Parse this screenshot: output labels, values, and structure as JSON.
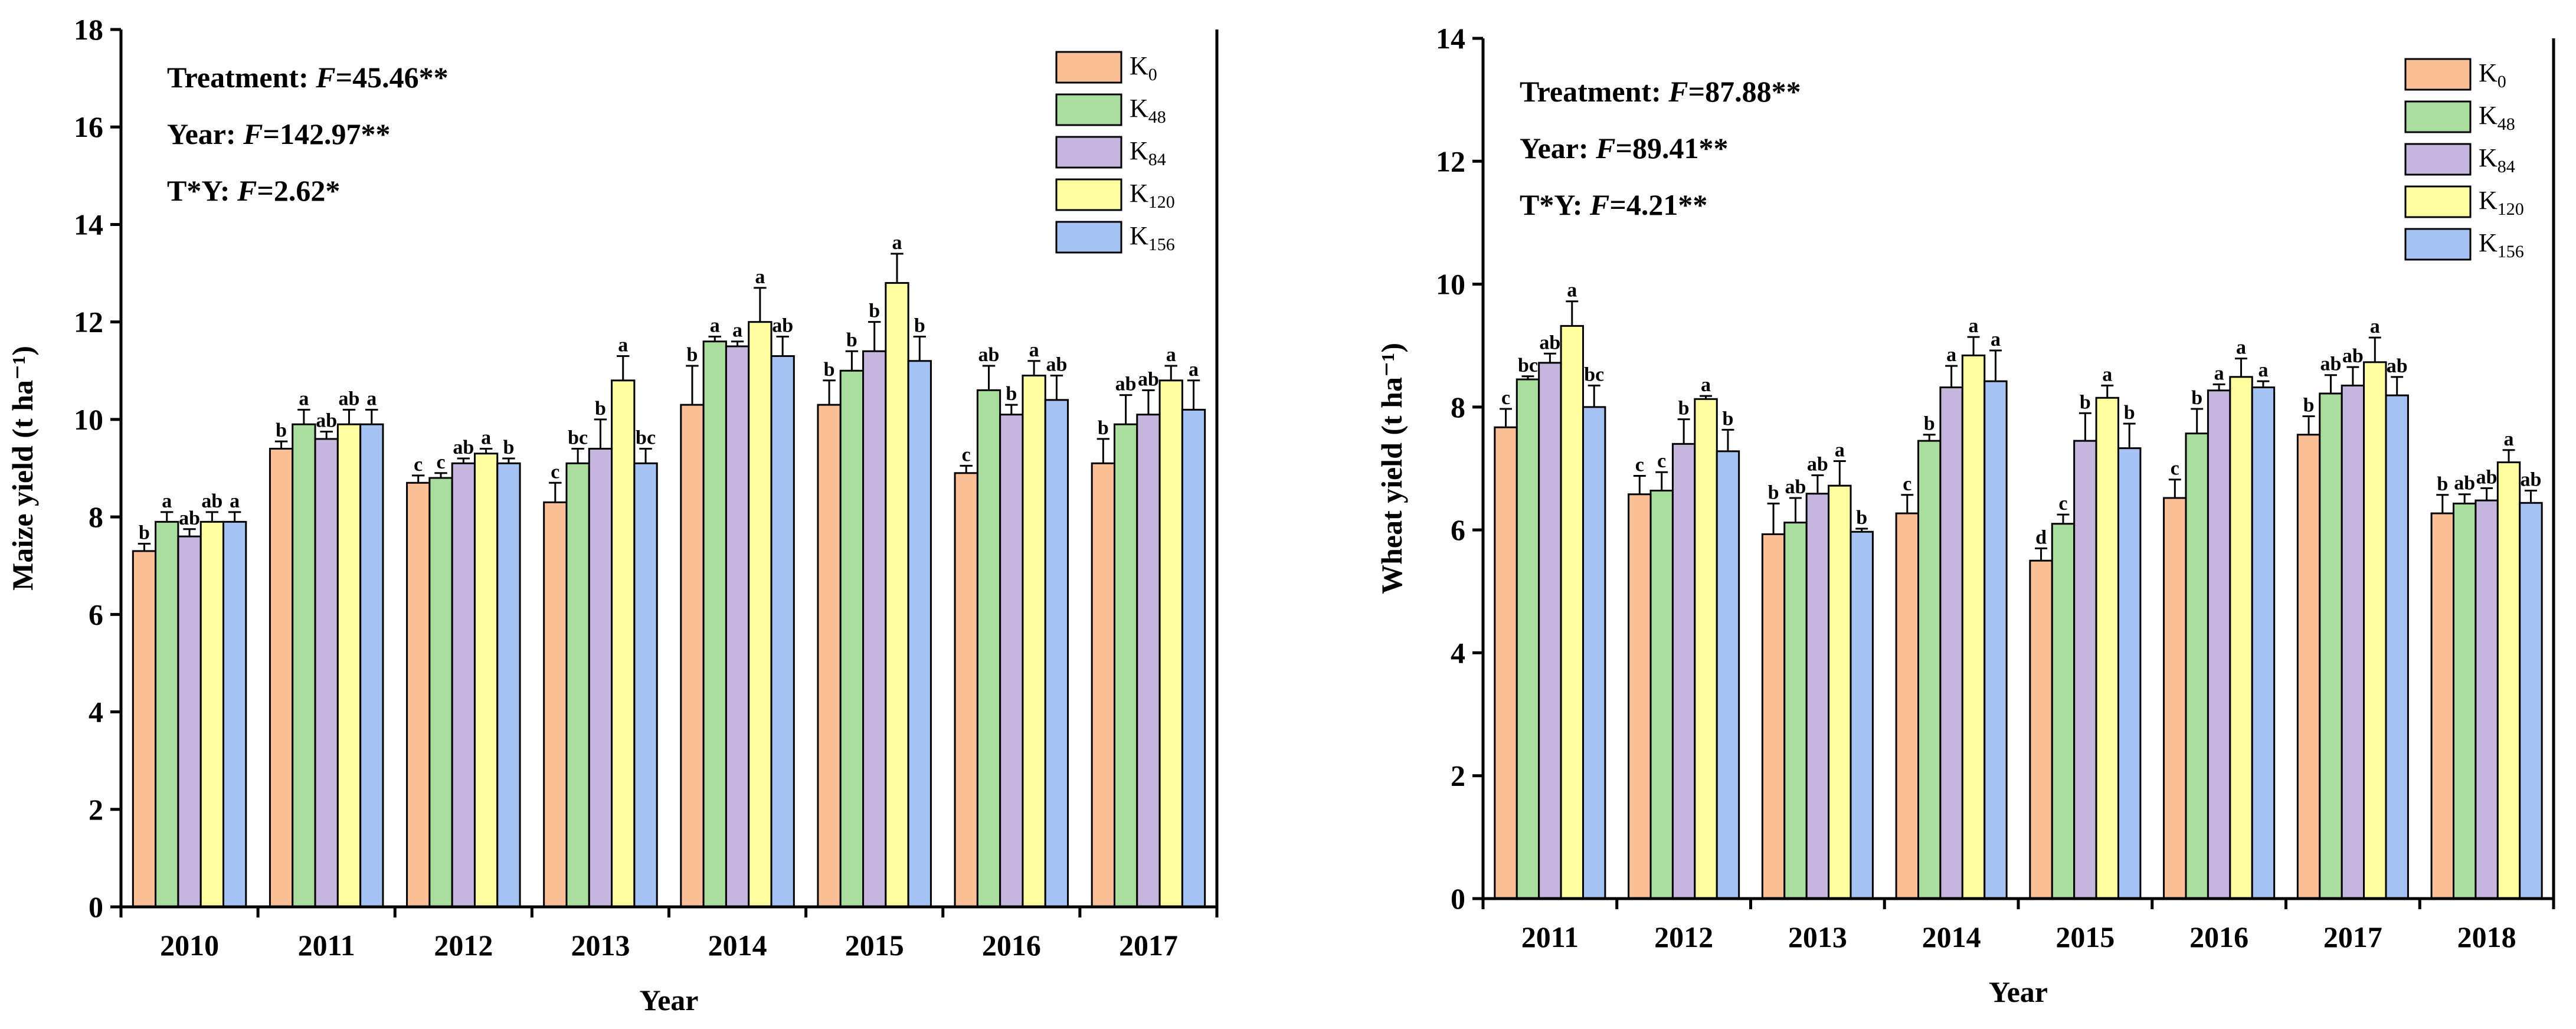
{
  "chart_data": [
    {
      "type": "bar",
      "xlabel": "Year",
      "ylabel": "Maize yield (t ha⁻¹)",
      "ylim": [
        0,
        18
      ],
      "yticks": [
        0,
        2,
        4,
        6,
        8,
        10,
        12,
        14,
        16,
        18
      ],
      "categories": [
        "2010",
        "2011",
        "2012",
        "2013",
        "2014",
        "2015",
        "2016",
        "2017"
      ],
      "legend_position": "top-right",
      "stats": [
        {
          "label": "Treatment: ",
          "var": "F",
          "value": "=45.46**"
        },
        {
          "label": "Year: ",
          "var": "F",
          "value": "=142.97**"
        },
        {
          "label": "T*Y: ",
          "var": "F",
          "value": "=2.62*"
        }
      ],
      "series": [
        {
          "name": "K0",
          "base": "K",
          "sub": "0",
          "color": "#FDBF96",
          "values": [
            7.3,
            9.4,
            8.7,
            8.3,
            10.3,
            10.3,
            8.9,
            9.1
          ],
          "errors": [
            0.15,
            0.15,
            0.15,
            0.4,
            0.8,
            0.5,
            0.15,
            0.5
          ],
          "labels": [
            "b",
            "b",
            "c",
            "c",
            "b",
            "b",
            "c",
            "b"
          ]
        },
        {
          "name": "K48",
          "base": "K",
          "sub": "48",
          "color": "#A9DE9F",
          "values": [
            7.9,
            9.9,
            8.8,
            9.1,
            11.6,
            11.0,
            10.6,
            9.9
          ],
          "errors": [
            0.2,
            0.3,
            0.1,
            0.3,
            0.1,
            0.4,
            0.5,
            0.6
          ],
          "labels": [
            "a",
            "a",
            "c",
            "bc",
            "a",
            "b",
            "ab",
            "ab"
          ]
        },
        {
          "name": "K84",
          "base": "K",
          "sub": "84",
          "color": "#C6B5DC",
          "values": [
            7.6,
            9.6,
            9.1,
            9.4,
            11.5,
            11.4,
            10.1,
            10.1
          ],
          "errors": [
            0.15,
            0.15,
            0.1,
            0.6,
            0.1,
            0.6,
            0.2,
            0.5
          ],
          "labels": [
            "ab",
            "ab",
            "ab",
            "b",
            "a",
            "b",
            "b",
            "ab"
          ]
        },
        {
          "name": "K120",
          "base": "K",
          "sub": "120",
          "color": "#FFFFA0",
          "values": [
            7.9,
            9.9,
            9.3,
            10.8,
            12.0,
            12.8,
            10.9,
            10.8
          ],
          "errors": [
            0.2,
            0.3,
            0.1,
            0.5,
            0.7,
            0.6,
            0.3,
            0.3
          ],
          "labels": [
            "ab",
            "ab",
            "a",
            "a",
            "a",
            "a",
            "a",
            "a"
          ]
        },
        {
          "name": "K156",
          "base": "K",
          "sub": "156",
          "color": "#A4C2F2",
          "values": [
            7.9,
            9.9,
            9.1,
            9.1,
            11.3,
            11.2,
            10.4,
            10.2
          ],
          "errors": [
            0.2,
            0.3,
            0.1,
            0.3,
            0.4,
            0.5,
            0.5,
            0.6
          ],
          "labels": [
            "a",
            "a",
            "b",
            "bc",
            "ab",
            "b",
            "ab",
            "a"
          ]
        }
      ]
    },
    {
      "type": "bar",
      "xlabel": "Year",
      "ylabel": "Wheat yield (t ha⁻¹)",
      "ylim": [
        0,
        14
      ],
      "yticks": [
        0,
        2,
        4,
        6,
        8,
        10,
        12,
        14
      ],
      "categories": [
        "2011",
        "2012",
        "2013",
        "2014",
        "2015",
        "2016",
        "2017",
        "2018"
      ],
      "legend_position": "top-right",
      "stats": [
        {
          "label": "Treatment: ",
          "var": "F",
          "value": "=87.88**"
        },
        {
          "label": "Year: ",
          "var": "F",
          "value": "=89.41**"
        },
        {
          "label": "T*Y: ",
          "var": "F",
          "value": "=4.21**"
        }
      ],
      "series": [
        {
          "name": "K0",
          "base": "K",
          "sub": "0",
          "color": "#FDBF96",
          "values": [
            7.67,
            6.58,
            5.93,
            6.27,
            5.5,
            6.52,
            7.55,
            6.27
          ],
          "errors": [
            0.3,
            0.3,
            0.5,
            0.3,
            0.2,
            0.3,
            0.3,
            0.3
          ],
          "labels": [
            "c",
            "c",
            "b",
            "c",
            "d",
            "c",
            "b",
            "b"
          ]
        },
        {
          "name": "K48",
          "base": "K",
          "sub": "48",
          "color": "#A9DE9F",
          "values": [
            8.45,
            6.64,
            6.12,
            7.45,
            6.1,
            7.57,
            8.22,
            6.43
          ],
          "errors": [
            0.05,
            0.3,
            0.4,
            0.1,
            0.15,
            0.4,
            0.3,
            0.15
          ],
          "labels": [
            "bc",
            "c",
            "ab",
            "b",
            "c",
            "b",
            "ab",
            "ab"
          ]
        },
        {
          "name": "K84",
          "base": "K",
          "sub": "84",
          "color": "#C6B5DC",
          "values": [
            8.72,
            7.4,
            6.59,
            8.32,
            7.45,
            8.27,
            8.35,
            6.48
          ],
          "errors": [
            0.15,
            0.4,
            0.3,
            0.35,
            0.45,
            0.1,
            0.3,
            0.2
          ],
          "labels": [
            "ab",
            "b",
            "ab",
            "a",
            "b",
            "a",
            "ab",
            "ab"
          ]
        },
        {
          "name": "K120",
          "base": "K",
          "sub": "120",
          "color": "#FFFFA0",
          "values": [
            9.32,
            8.13,
            6.72,
            8.84,
            8.15,
            8.49,
            8.73,
            7.1
          ],
          "errors": [
            0.4,
            0.05,
            0.4,
            0.3,
            0.2,
            0.3,
            0.4,
            0.2
          ],
          "labels": [
            "a",
            "a",
            "a",
            "a",
            "a",
            "a",
            "a",
            "a"
          ]
        },
        {
          "name": "K156",
          "base": "K",
          "sub": "156",
          "color": "#A4C2F2",
          "values": [
            8.0,
            7.28,
            5.97,
            8.42,
            7.33,
            8.32,
            8.19,
            6.44
          ],
          "errors": [
            0.35,
            0.35,
            0.05,
            0.5,
            0.4,
            0.1,
            0.3,
            0.2
          ],
          "labels": [
            "bc",
            "b",
            "b",
            "a",
            "b",
            "a",
            "ab",
            "ab"
          ]
        }
      ]
    }
  ]
}
